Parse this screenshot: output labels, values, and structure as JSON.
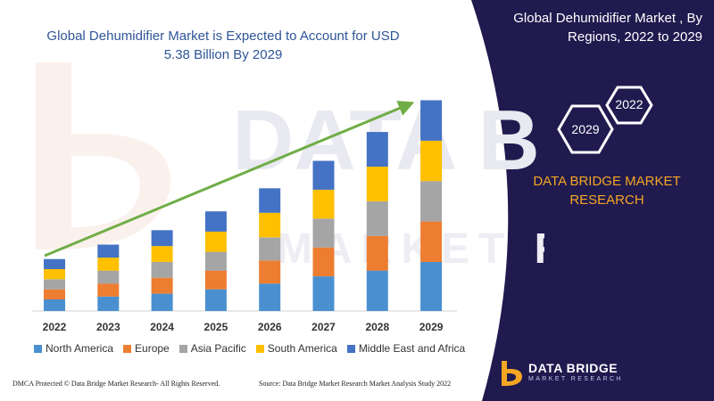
{
  "title": "Global Dehumidifier Market is Expected to Account for USD 5.38 Billion By 2029",
  "right_panel": {
    "title": "Global Dehumidifier Market , By Regions, 2022 to 2029",
    "hex_year_a": "2022",
    "hex_year_b": "2029",
    "brand": "DATA BRIDGE MARKET RESEARCH"
  },
  "footer": {
    "left": "DMCA Protected © Data Bridge Market Research- All Rights Reserved.",
    "right": "Source: Data Bridge Market Research Market Analysis Study 2022"
  },
  "logo": {
    "main": "DATA BRIDGE",
    "sub": "MARKET RESEARCH"
  },
  "colors": {
    "north_america": "#4a90d0",
    "europe": "#ed7d31",
    "asia_pacific": "#a5a5a5",
    "south_america": "#ffc000",
    "middle_east_africa": "#4472c4",
    "trend_arrow": "#70ad47",
    "panel": "#201a4f",
    "title": "#2f5597",
    "accent": "#f5a623"
  },
  "chart_data": {
    "type": "bar",
    "stacked": true,
    "categories": [
      "2022",
      "2023",
      "2024",
      "2025",
      "2026",
      "2027",
      "2028",
      "2029"
    ],
    "series": [
      {
        "name": "North America",
        "values": [
          8,
          10,
          12,
          15,
          19,
          24,
          28,
          34
        ]
      },
      {
        "name": "Europe",
        "values": [
          7,
          9,
          11,
          13,
          16,
          20,
          24,
          28
        ]
      },
      {
        "name": "Asia Pacific",
        "values": [
          7,
          9,
          11,
          13,
          16,
          20,
          24,
          28
        ]
      },
      {
        "name": "South America",
        "values": [
          7,
          9,
          11,
          14,
          17,
          20,
          24,
          28
        ]
      },
      {
        "name": "Middle East and Africa",
        "values": [
          7,
          9,
          11,
          14,
          17,
          20,
          24,
          28
        ]
      }
    ],
    "trend_arrow": true,
    "legend": "bottom",
    "grid": false
  }
}
